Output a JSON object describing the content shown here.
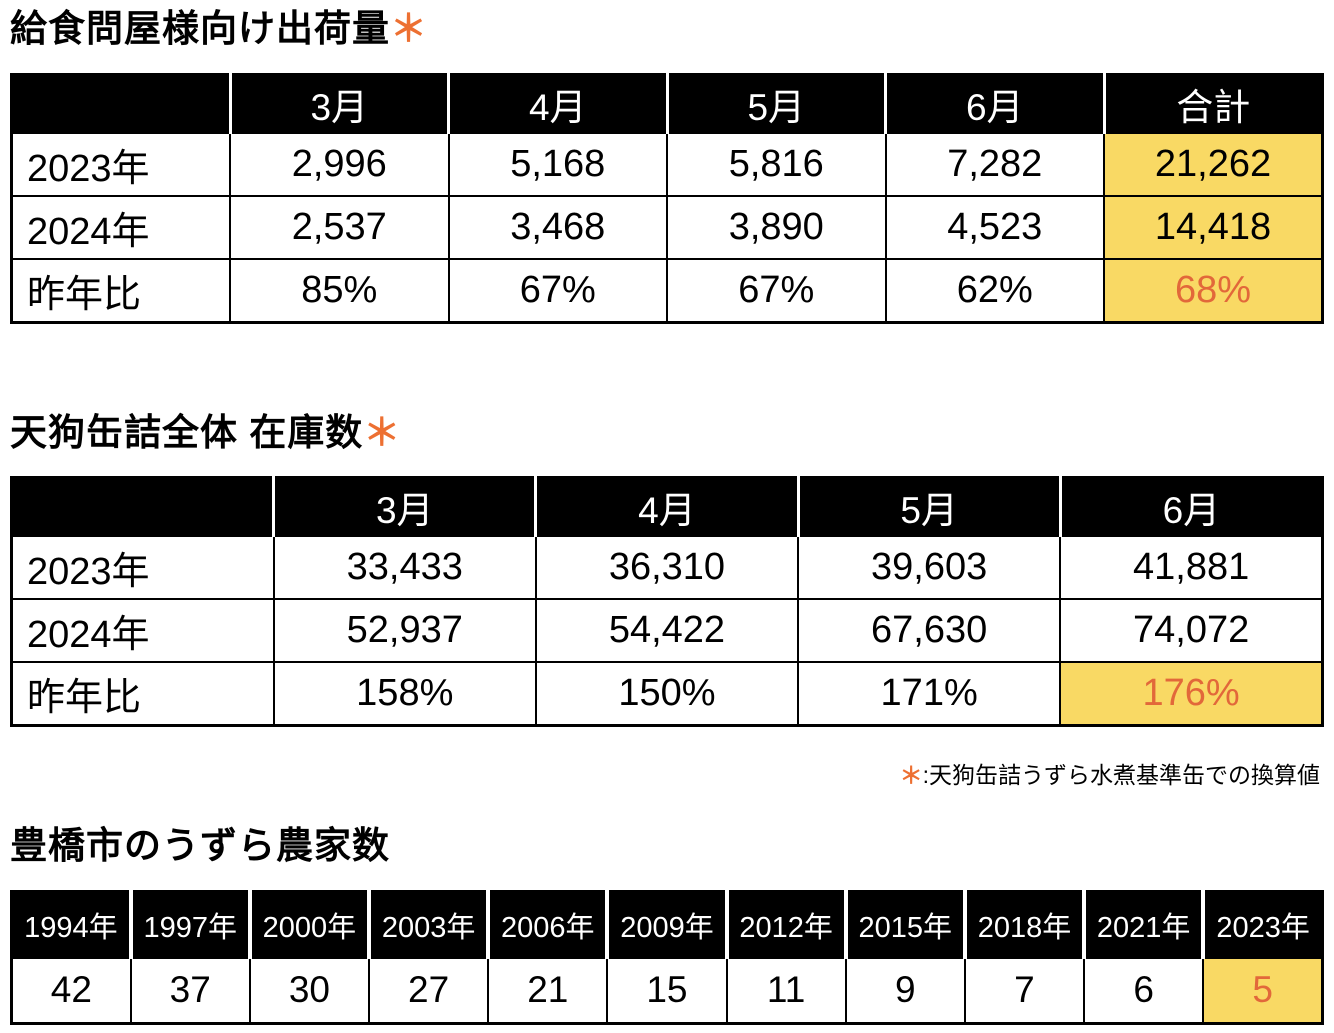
{
  "colors": {
    "header_bg": "#000000",
    "highlight_yellow": "#f9d964",
    "accent_orange": "#e2683a",
    "asterisk_orange": "#ed7032"
  },
  "sections": {
    "shipments": {
      "title": "給食問屋様向け出荷量",
      "marker": "＊",
      "columns": [
        "",
        "3月",
        "4月",
        "5月",
        "6月",
        "合計"
      ],
      "rows": [
        {
          "label": "2023年",
          "values": [
            "2,996",
            "5,168",
            "5,816",
            "7,282",
            "21,262"
          ]
        },
        {
          "label": "2024年",
          "values": [
            "2,537",
            "3,468",
            "3,890",
            "4,523",
            "14,418"
          ]
        },
        {
          "label": "昨年比",
          "values": [
            "85%",
            "67%",
            "67%",
            "62%",
            "68%"
          ]
        }
      ]
    },
    "inventory": {
      "title": "天狗缶詰全体 在庫数",
      "marker": "＊",
      "columns": [
        "",
        "3月",
        "4月",
        "5月",
        "6月"
      ],
      "rows": [
        {
          "label": "2023年",
          "values": [
            "33,433",
            "36,310",
            "39,603",
            "41,881"
          ]
        },
        {
          "label": "2024年",
          "values": [
            "52,937",
            "54,422",
            "67,630",
            "74,072"
          ]
        },
        {
          "label": "昨年比",
          "values": [
            "158%",
            "150%",
            "171%",
            "176%"
          ]
        }
      ]
    },
    "footnote": {
      "marker": "＊",
      "text": ":天狗缶詰うずら水煮基準缶での換算値"
    },
    "farmers": {
      "title": "豊橋市のうずら農家数",
      "years": [
        "1994年",
        "1997年",
        "2000年",
        "2003年",
        "2006年",
        "2009年",
        "2012年",
        "2015年",
        "2018年",
        "2021年",
        "2023年"
      ],
      "values": [
        "42",
        "37",
        "30",
        "27",
        "21",
        "15",
        "11",
        "9",
        "7",
        "6",
        "5"
      ]
    }
  },
  "chart_data": [
    {
      "type": "table",
      "title": "給食問屋様向け出荷量",
      "columns": [
        "3月",
        "4月",
        "5月",
        "6月",
        "合計"
      ],
      "rows": [
        {
          "label": "2023年",
          "values": [
            2996,
            5168,
            5816,
            7282,
            21262
          ]
        },
        {
          "label": "2024年",
          "values": [
            2537,
            3468,
            3890,
            4523,
            14418
          ]
        },
        {
          "label": "昨年比",
          "values": [
            "85%",
            "67%",
            "67%",
            "62%",
            "68%"
          ]
        }
      ],
      "highlight": "合計 column cells yellow; 68% in orange text"
    },
    {
      "type": "table",
      "title": "天狗缶詰全体 在庫数",
      "columns": [
        "3月",
        "4月",
        "5月",
        "6月"
      ],
      "rows": [
        {
          "label": "2023年",
          "values": [
            33433,
            36310,
            39603,
            41881
          ]
        },
        {
          "label": "2024年",
          "values": [
            52937,
            54422,
            67630,
            74072
          ]
        },
        {
          "label": "昨年比",
          "values": [
            "158%",
            "150%",
            "171%",
            "176%"
          ]
        }
      ],
      "highlight": "6月 昨年比 cell (176%) yellow with orange text"
    },
    {
      "type": "table",
      "title": "豊橋市のうずら農家数",
      "categories": [
        "1994年",
        "1997年",
        "2000年",
        "2003年",
        "2006年",
        "2009年",
        "2012年",
        "2015年",
        "2018年",
        "2021年",
        "2023年"
      ],
      "values": [
        42,
        37,
        30,
        27,
        21,
        15,
        11,
        9,
        7,
        6,
        5
      ],
      "highlight": "2023年 cell (5) yellow with orange text"
    }
  ]
}
